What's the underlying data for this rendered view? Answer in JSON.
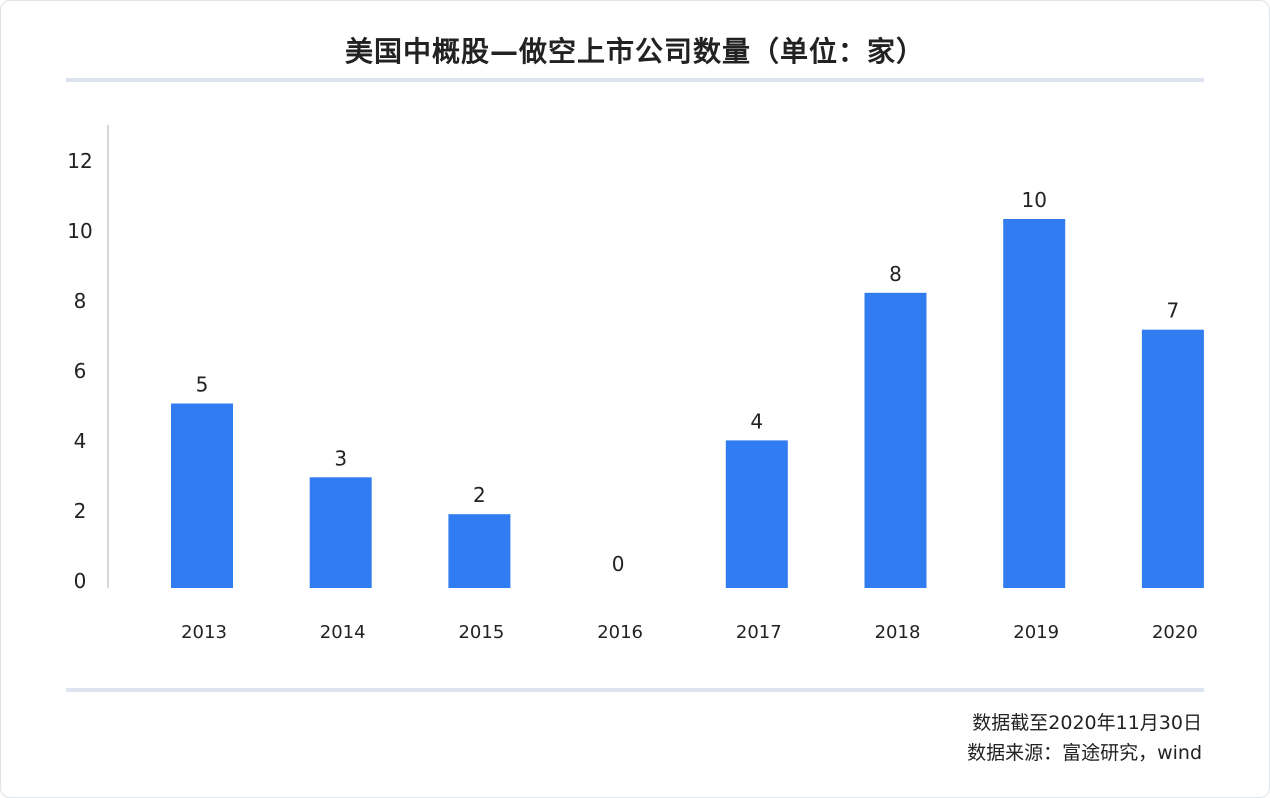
{
  "title": "美国中概股—做空上市公司数量（单位：家）",
  "chart_data": {
    "type": "bar",
    "categories": [
      "2013",
      "2014",
      "2015",
      "2016",
      "2017",
      "2018",
      "2019",
      "2020"
    ],
    "values": [
      5,
      3,
      2,
      0,
      4,
      8,
      10,
      7
    ],
    "ylim": [
      0,
      12
    ],
    "yticks": [
      0,
      2,
      4,
      6,
      8,
      10,
      12
    ],
    "bar_color": "#307cf0",
    "grid": false,
    "legend": "none"
  },
  "footer": {
    "date_note": "数据截至2020年11月30日",
    "source": "数据来源：富途研究，wind"
  }
}
